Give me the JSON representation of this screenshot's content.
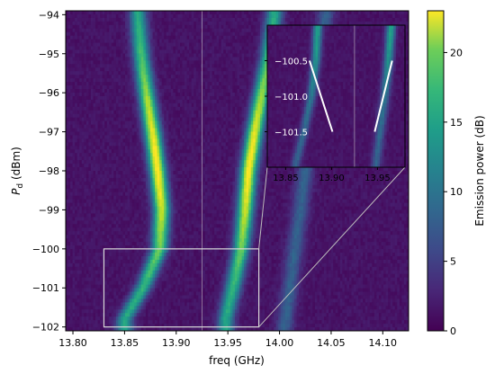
{
  "chart_data": {
    "type": "heatmap",
    "title": "",
    "xlabel": "freq (GHz)",
    "ylabel_symbol": "P",
    "ylabel_subscript": "d",
    "ylabel_unit": " (dBm)",
    "xlim": [
      13.793,
      14.125
    ],
    "ylim": [
      -102.1,
      -93.9
    ],
    "x_ticks": [
      {
        "value": 13.8,
        "label": "13.80"
      },
      {
        "value": 13.85,
        "label": "13.85"
      },
      {
        "value": 13.9,
        "label": "13.90"
      },
      {
        "value": 13.95,
        "label": "13.95"
      },
      {
        "value": 14.0,
        "label": "14.00"
      },
      {
        "value": 14.05,
        "label": "14.05"
      },
      {
        "value": 14.1,
        "label": "14.10"
      }
    ],
    "y_ticks": [
      {
        "value": -94,
        "label": "−94"
      },
      {
        "value": -95,
        "label": "−95"
      },
      {
        "value": -96,
        "label": "−96"
      },
      {
        "value": -97,
        "label": "−97"
      },
      {
        "value": -98,
        "label": "−98"
      },
      {
        "value": -99,
        "label": "−99"
      },
      {
        "value": -100,
        "label": "−100"
      },
      {
        "value": -101,
        "label": "−101"
      },
      {
        "value": -102,
        "label": "−102"
      }
    ],
    "reference_line_freq": 13.925,
    "colorbar": {
      "label": "Emission power (dB)",
      "colormap": "viridis",
      "range": [
        0,
        23
      ],
      "ticks": [
        {
          "value": 0,
          "label": "0"
        },
        {
          "value": 5,
          "label": "5"
        },
        {
          "value": 10,
          "label": "10"
        },
        {
          "value": 15,
          "label": "15"
        },
        {
          "value": 20,
          "label": "20"
        }
      ]
    },
    "ridges": [
      {
        "power": [
          -94,
          -95,
          -96,
          -97,
          -98,
          -99,
          -100,
          -101,
          -101.8
        ],
        "freq": [
          13.863,
          13.866,
          13.871,
          13.877,
          13.882,
          13.886,
          13.884,
          13.868,
          13.85
        ],
        "peak_db": 22
      },
      {
        "power": [
          -94,
          -95,
          -96,
          -97,
          -98,
          -99,
          -100,
          -101,
          -101.8
        ],
        "freq": [
          13.995,
          13.99,
          13.983,
          13.976,
          13.97,
          13.967,
          13.963,
          13.955,
          13.948
        ],
        "peak_db": 22
      },
      {
        "power": [
          -94,
          -96,
          -98,
          -100,
          -102
        ],
        "freq": [
          14.045,
          14.035,
          14.025,
          14.015,
          14.005
        ],
        "peak_db": 6
      }
    ],
    "zoom_box": {
      "freq": [
        13.83,
        13.98
      ],
      "power": [
        -102,
        -100
      ]
    },
    "inset": {
      "xlim": [
        13.83,
        13.98
      ],
      "ylim": [
        -102,
        -100
      ],
      "x_ticks": [
        {
          "value": 13.85,
          "label": "13.85"
        },
        {
          "value": 13.9,
          "label": "13.90"
        },
        {
          "value": 13.95,
          "label": "13.95"
        }
      ],
      "y_ticks": [
        {
          "value": -100.5,
          "label": "−100.5"
        },
        {
          "value": -101.0,
          "label": "−101.0"
        },
        {
          "value": -101.5,
          "label": "−101.5"
        }
      ],
      "ridges": [
        {
          "power": [
            -100.0,
            -100.5,
            -101.0,
            -101.5,
            -102.0
          ],
          "freq": [
            13.885,
            13.883,
            13.878,
            13.87,
            13.86
          ]
        },
        {
          "power": [
            -100.0,
            -100.5,
            -101.0,
            -101.5,
            -102.0
          ],
          "freq": [
            13.965,
            13.962,
            13.958,
            13.953,
            13.948
          ]
        }
      ],
      "fit_lines": [
        {
          "freq": [
            13.876,
            13.901
          ],
          "power": [
            -100.5,
            -101.5
          ]
        },
        {
          "freq": [
            13.947,
            13.966
          ],
          "power": [
            -101.5,
            -100.5
          ]
        }
      ]
    }
  }
}
